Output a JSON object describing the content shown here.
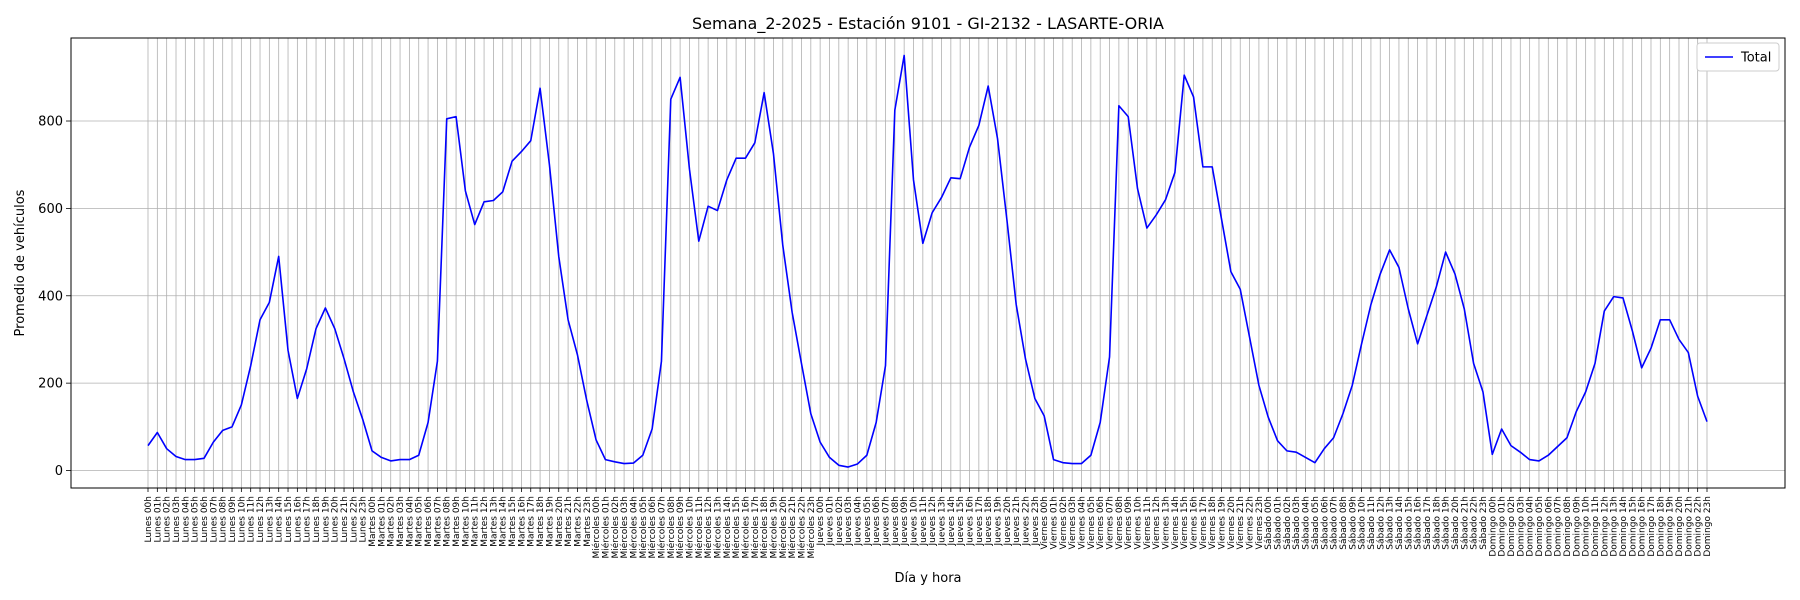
{
  "chart_data": {
    "type": "line",
    "title": "Semana_2-2025 - Estación 9101 - GI-2132  - LASARTE-ORIA",
    "xlabel": "Día y hora",
    "ylabel": "Promedio de vehículos",
    "ylim": [
      -40,
      990
    ],
    "yticks": [
      0,
      200,
      400,
      600,
      800
    ],
    "grid": true,
    "legend_position": "top-right",
    "days": [
      "Lunes",
      "Martes",
      "Miércoles",
      "Jueves",
      "Viernes",
      "Sábado",
      "Domingo"
    ],
    "series": [
      {
        "name": "Total",
        "color": "#0000ff",
        "values": [
          57,
          87,
          50,
          32,
          25,
          25,
          28,
          65,
          92,
          100,
          150,
          240,
          345,
          385,
          490,
          275,
          165,
          233,
          325,
          372,
          325,
          256,
          180,
          117,
          45,
          30,
          22,
          25,
          25,
          35,
          110,
          250,
          805,
          810,
          640,
          563,
          615,
          618,
          638,
          708,
          730,
          755,
          875,
          700,
          490,
          345,
          265,
          160,
          70,
          25,
          20,
          16,
          17,
          35,
          95,
          250,
          850,
          900,
          690,
          525,
          605,
          595,
          665,
          715,
          715,
          750,
          865,
          725,
          515,
          362,
          245,
          130,
          65,
          30,
          12,
          8,
          15,
          35,
          110,
          240,
          825,
          950,
          665,
          520,
          590,
          625,
          670,
          668,
          740,
          790,
          880,
          760,
          575,
          380,
          255,
          165,
          125,
          25,
          18,
          16,
          16,
          35,
          110,
          260,
          835,
          810,
          645,
          555,
          585,
          620,
          682,
          905,
          855,
          695,
          695,
          575,
          455,
          415,
          305,
          195,
          122,
          68,
          45,
          42,
          30,
          18,
          50,
          75,
          130,
          195,
          290,
          380,
          450,
          505,
          465,
          370,
          290,
          355,
          420,
          500,
          450,
          370,
          245,
          180,
          37,
          95,
          57,
          42,
          25,
          22,
          35,
          55,
          75,
          135,
          180,
          245,
          365,
          398,
          395,
          320,
          235,
          280,
          345,
          345,
          300,
          270,
          170,
          112
        ]
      }
    ]
  }
}
